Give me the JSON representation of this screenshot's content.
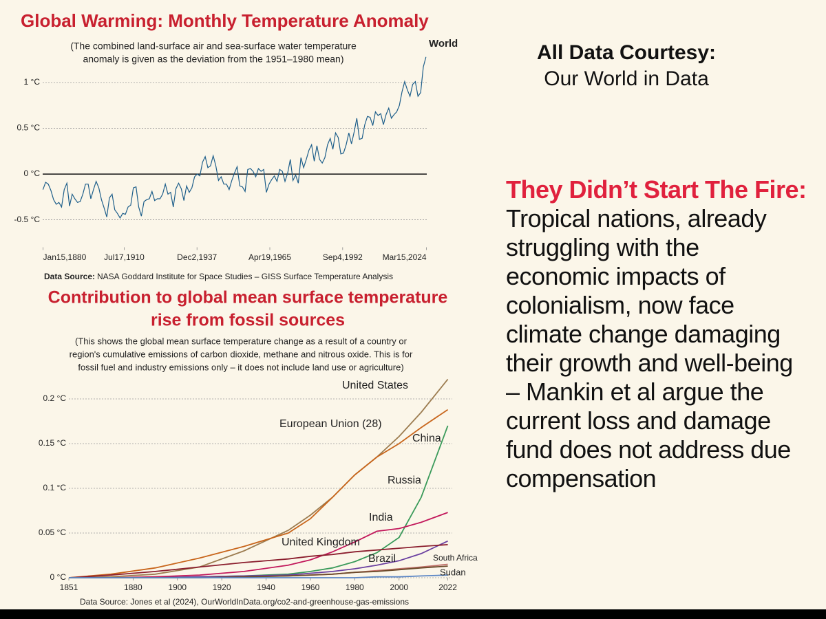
{
  "chart_data": [
    {
      "type": "line",
      "title": "Global Warming: Monthly Temperature Anomaly",
      "subtitle": [
        "(The combined land-surface air and sea-surface water temperature",
        "anomaly is given as the deviation from the 1951–1980 mean)"
      ],
      "x": [
        1880,
        1881,
        1882,
        1883,
        1884,
        1885,
        1886,
        1887,
        1888,
        1889,
        1890,
        1891,
        1892,
        1893,
        1894,
        1895,
        1896,
        1897,
        1898,
        1899,
        1900,
        1901,
        1902,
        1903,
        1904,
        1905,
        1906,
        1907,
        1908,
        1909,
        1910,
        1911,
        1912,
        1913,
        1914,
        1915,
        1916,
        1917,
        1918,
        1919,
        1920,
        1921,
        1922,
        1923,
        1924,
        1925,
        1926,
        1927,
        1928,
        1929,
        1930,
        1931,
        1932,
        1933,
        1934,
        1935,
        1936,
        1937,
        1938,
        1939,
        1940,
        1941,
        1942,
        1943,
        1944,
        1945,
        1946,
        1947,
        1948,
        1949,
        1950,
        1951,
        1952,
        1953,
        1954,
        1955,
        1956,
        1957,
        1958,
        1959,
        1960,
        1961,
        1962,
        1963,
        1964,
        1965,
        1966,
        1967,
        1968,
        1969,
        1970,
        1971,
        1972,
        1973,
        1974,
        1975,
        1976,
        1977,
        1978,
        1979,
        1980,
        1981,
        1982,
        1983,
        1984,
        1985,
        1986,
        1987,
        1988,
        1989,
        1990,
        1991,
        1992,
        1993,
        1994,
        1995,
        1996,
        1997,
        1998,
        1999,
        2000,
        2001,
        2002,
        2003,
        2004,
        2005,
        2006,
        2007,
        2008,
        2009,
        2010,
        2011,
        2012,
        2013,
        2014,
        2015,
        2016,
        2017,
        2018,
        2019,
        2020,
        2021,
        2022,
        2023,
        2024
      ],
      "series": [
        {
          "name": "World",
          "color": "#1d5e8a",
          "values": [
            -0.17,
            -0.09,
            -0.11,
            -0.18,
            -0.28,
            -0.33,
            -0.31,
            -0.36,
            -0.17,
            -0.1,
            -0.35,
            -0.22,
            -0.27,
            -0.31,
            -0.3,
            -0.22,
            -0.11,
            -0.11,
            -0.27,
            -0.17,
            -0.08,
            -0.15,
            -0.28,
            -0.37,
            -0.47,
            -0.26,
            -0.22,
            -0.39,
            -0.43,
            -0.48,
            -0.43,
            -0.44,
            -0.36,
            -0.34,
            -0.15,
            -0.14,
            -0.36,
            -0.46,
            -0.3,
            -0.28,
            -0.27,
            -0.19,
            -0.29,
            -0.27,
            -0.27,
            -0.22,
            -0.11,
            -0.22,
            -0.2,
            -0.36,
            -0.16,
            -0.1,
            -0.16,
            -0.29,
            -0.13,
            -0.2,
            -0.15,
            -0.03,
            0.0,
            -0.02,
            0.13,
            0.19,
            0.07,
            0.09,
            0.2,
            0.09,
            -0.07,
            -0.03,
            -0.11,
            -0.11,
            -0.17,
            -0.07,
            0.01,
            0.08,
            -0.13,
            -0.14,
            -0.19,
            0.05,
            0.06,
            0.03,
            -0.03,
            0.06,
            0.03,
            0.05,
            -0.2,
            -0.11,
            -0.06,
            -0.02,
            -0.08,
            0.05,
            0.03,
            -0.08,
            0.01,
            0.16,
            -0.07,
            -0.01,
            -0.1,
            0.18,
            0.07,
            0.16,
            0.26,
            0.32,
            0.14,
            0.31,
            0.16,
            0.12,
            0.18,
            0.32,
            0.39,
            0.27,
            0.45,
            0.4,
            0.22,
            0.23,
            0.32,
            0.45,
            0.33,
            0.46,
            0.61,
            0.38,
            0.39,
            0.54,
            0.63,
            0.62,
            0.53,
            0.68,
            0.64,
            0.66,
            0.54,
            0.65,
            0.72,
            0.61,
            0.65,
            0.68,
            0.75,
            0.9,
            1.01,
            0.92,
            0.85,
            0.98,
            1.01,
            0.85,
            0.89,
            1.17,
            1.28
          ]
        }
      ],
      "xlim": [
        1879.9,
        2024.3
      ],
      "xticks": [
        {
          "value": 1880.04,
          "label": "Jan15,1880"
        },
        {
          "value": 1910.54,
          "label": "Jul17,1910"
        },
        {
          "value": 1937.92,
          "label": "Dec2,1937"
        },
        {
          "value": 1965.3,
          "label": "Apr19,1965"
        },
        {
          "value": 1992.68,
          "label": "Sep4,1992"
        },
        {
          "value": 2024.2,
          "label": "Mar15,2024"
        }
      ],
      "ylim": [
        -0.8,
        1.5
      ],
      "yticks": [
        {
          "value": 1,
          "label": "1 °C"
        },
        {
          "value": 0.5,
          "label": "0.5 °C"
        },
        {
          "value": 0,
          "label": "0 °C"
        },
        {
          "value": -0.5,
          "label": "-0.5 °C"
        }
      ],
      "grid": true,
      "source_label": "Data Source:",
      "source": "NASA Goddard Institute for Space Studies – GISS Surface Temperature Analysis"
    },
    {
      "type": "line",
      "title": [
        "Contribution to global mean surface temperature",
        "rise from fossil sources"
      ],
      "subtitle": [
        "(This shows the global mean surface temperature change as a result of a country or",
        "region's cumulative emissions of carbon dioxide, methane and nitrous oxide. This is for",
        "fossil fuel and industry emissions only – it does not include land use or agriculture)"
      ],
      "x": [
        1851,
        1870,
        1890,
        1910,
        1930,
        1950,
        1960,
        1970,
        1980,
        1990,
        2000,
        2010,
        2022
      ],
      "series": [
        {
          "name": "United States",
          "color": "#9c7c50",
          "values": [
            0,
            0.001,
            0.004,
            0.012,
            0.03,
            0.053,
            0.07,
            0.09,
            0.115,
            0.135,
            0.158,
            0.185,
            0.222
          ]
        },
        {
          "name": "European Union (28)",
          "color": "#c8651b",
          "values": [
            0,
            0.004,
            0.011,
            0.022,
            0.035,
            0.05,
            0.066,
            0.09,
            0.115,
            0.135,
            0.15,
            0.168,
            0.188
          ]
        },
        {
          "name": "China",
          "color": "#3a9a5a",
          "values": [
            0,
            0,
            0,
            0.001,
            0.002,
            0.004,
            0.007,
            0.011,
            0.018,
            0.028,
            0.045,
            0.09,
            0.17
          ]
        },
        {
          "name": "Russia",
          "color": "#c2185b",
          "values": [
            0,
            0,
            0.001,
            0.003,
            0.007,
            0.014,
            0.02,
            0.029,
            0.04,
            0.052,
            0.055,
            0.062,
            0.073
          ]
        },
        {
          "name": "India",
          "color": "#6a3fa0",
          "values": [
            0,
            0,
            0,
            0.001,
            0.002,
            0.003,
            0.005,
            0.007,
            0.01,
            0.014,
            0.019,
            0.027,
            0.041
          ]
        },
        {
          "name": "United Kingdom",
          "color": "#8b1e2e",
          "values": [
            0,
            0.003,
            0.007,
            0.012,
            0.017,
            0.021,
            0.024,
            0.026,
            0.029,
            0.031,
            0.033,
            0.035,
            0.037
          ]
        },
        {
          "name": "Brazil",
          "color": "#c0706a",
          "values": [
            0,
            0,
            0,
            0,
            0.001,
            0.002,
            0.003,
            0.004,
            0.006,
            0.008,
            0.01,
            0.012,
            0.015
          ]
        },
        {
          "name": "South Africa",
          "color": "#6b4a2a",
          "values": [
            0,
            0,
            0,
            0,
            0.001,
            0.002,
            0.003,
            0.004,
            0.006,
            0.007,
            0.009,
            0.011,
            0.013
          ]
        },
        {
          "name": "Sudan",
          "color": "#5b86c5",
          "values": [
            0,
            0,
            0,
            0,
            0,
            0,
            0,
            0,
            0,
            0.001,
            0.001,
            0.002,
            0.003
          ]
        }
      ],
      "xlim": [
        1851,
        2024
      ],
      "xticks": [
        1851,
        1880,
        1900,
        1920,
        1940,
        1960,
        1980,
        2000,
        2022
      ],
      "ylim": [
        0,
        0.225
      ],
      "yticks": [
        {
          "value": 0.2,
          "label": "0.2 °C"
        },
        {
          "value": 0.15,
          "label": "0.15 °C"
        },
        {
          "value": 0.1,
          "label": "0.1 °C"
        },
        {
          "value": 0.05,
          "label": "0.05 °C"
        },
        {
          "value": 0,
          "label": "0 °C"
        }
      ],
      "grid": true,
      "source": "Data Source: Jones et al (2024), OurWorldInData.org/co2-and-greenhouse-gas-emissions"
    }
  ],
  "sidebar": {
    "courtesy_title": "All Data Courtesy:",
    "courtesy_source": "Our World in Data",
    "headline": "They Didn’t Start The Fire:",
    "body": "Tropical nations, already struggling with the economic impacts of colonialism, now face climate change damaging their growth and well-being – Mankin et al argue the current loss and damage fund does not address due compensation"
  }
}
